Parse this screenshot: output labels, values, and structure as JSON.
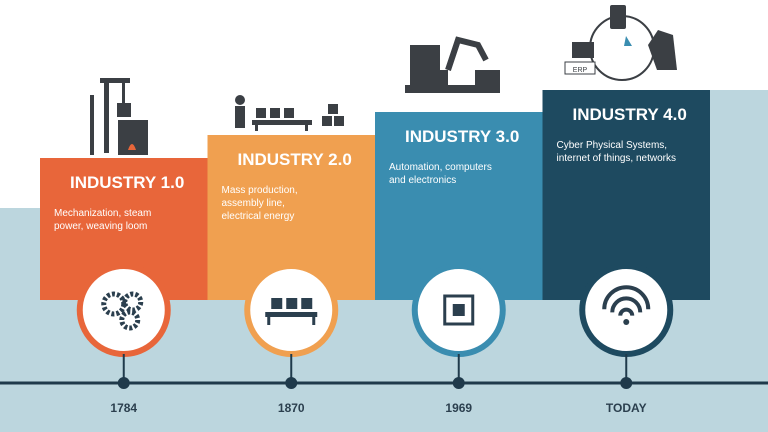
{
  "stages": [
    {
      "title": "INDUSTRY 1.0",
      "description": [
        "Mechanization, steam",
        "power, weaving loom"
      ],
      "year": "1784"
    },
    {
      "title": "INDUSTRY 2.0",
      "description": [
        "Mass production,",
        "assembly line,",
        "electrical energy"
      ],
      "year": "1870"
    },
    {
      "title": "INDUSTRY 3.0",
      "description": [
        "Automation, computers",
        "and electronics"
      ],
      "year": "1969"
    },
    {
      "title": "INDUSTRY 4.0",
      "description": [
        "Cyber Physical Systems,",
        "internet of things, networks"
      ],
      "year": "TODAY"
    }
  ],
  "icon_labels": {
    "erp": "ERP"
  }
}
